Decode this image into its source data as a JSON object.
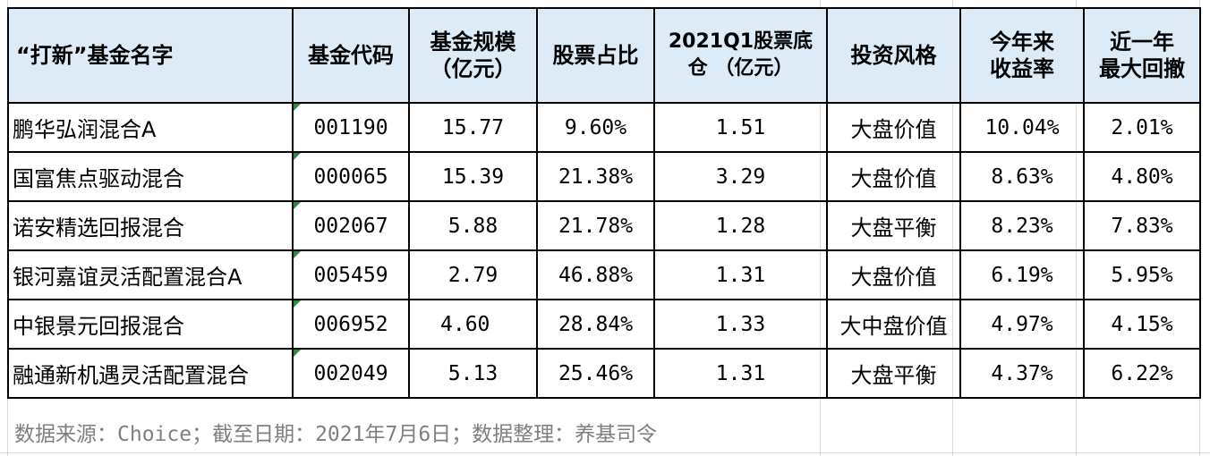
{
  "table": {
    "headers": {
      "name": "“打新”基金名字",
      "code": "基金代码",
      "scale_l1": "基金规模",
      "scale_l2": "（亿元）",
      "stock_ratio": "股票占比",
      "base_l1": "2021Q1股票底",
      "base_l2": "仓 （亿元）",
      "style": "投资风格",
      "ytd_l1": "今年来",
      "ytd_l2": "收益率",
      "dd_l1": "近一年",
      "dd_l2": "最大回撤"
    },
    "rows": [
      {
        "name": "鹏华弘润混合A",
        "code": "001190",
        "scale": "15.77",
        "stock_ratio": "9.60%",
        "base": "1.51",
        "style": "大盘价值",
        "ytd": "10.04%",
        "drawdown": "2.01%"
      },
      {
        "name": "国富焦点驱动混合",
        "code": "000065",
        "scale": "15.39",
        "stock_ratio": "21.38%",
        "base": "3.29",
        "style": "大盘价值",
        "ytd": "8.63%",
        "drawdown": "4.80%"
      },
      {
        "name": "诺安精选回报混合",
        "code": "002067",
        "scale": "5.88",
        "stock_ratio": "21.78%",
        "base": "1.28",
        "style": "大盘平衡",
        "ytd": "8.23%",
        "drawdown": "7.83%"
      },
      {
        "name": "银河嘉谊灵活配置混合A",
        "code": "005459",
        "scale": "2.79",
        "stock_ratio": "46.88%",
        "base": "1.31",
        "style": "大盘价值",
        "ytd": "6.19%",
        "drawdown": "5.95%"
      },
      {
        "name": "中银景元回报混合",
        "code": "006952",
        "scale": "4.60",
        "stock_ratio": "28.84%",
        "base": "1.33",
        "style": "大中盘价值",
        "ytd": "4.97%",
        "drawdown": "4.15%"
      },
      {
        "name": "融通新机遇灵活配置混合",
        "code": "002049",
        "scale": "5.13",
        "stock_ratio": "25.46%",
        "base": "1.31",
        "style": "大盘平衡",
        "ytd": "4.37%",
        "drawdown": "6.22%"
      }
    ]
  },
  "footer": {
    "source_note": "数据来源：Choice；截至日期：2021年7月6日；数据整理：养基司令"
  },
  "colors": {
    "header_bg": "#ddebf7",
    "flag_green": "#2e8b3b",
    "footer_text": "#7f7f7f"
  }
}
